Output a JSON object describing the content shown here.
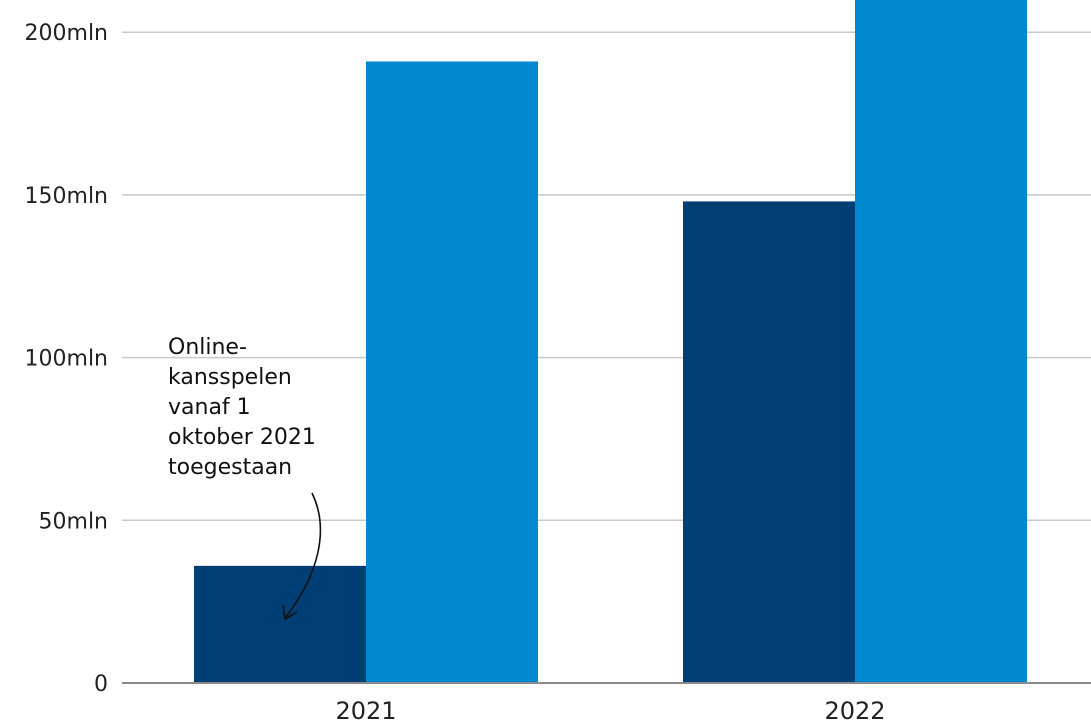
{
  "chart_data": {
    "type": "bar",
    "categories": [
      "2021",
      "2022"
    ],
    "series": [
      {
        "values": [
          36,
          148
        ],
        "color": "#003f75"
      },
      {
        "values": [
          191,
          216
        ],
        "color": "#0088d1"
      }
    ],
    "yticks": [
      0,
      50,
      100,
      150,
      200
    ],
    "ytick_labels": [
      "0",
      "50mln",
      "100mln",
      "150mln",
      "200mln"
    ],
    "ylim": [
      0,
      210
    ],
    "grid": true,
    "annotation": {
      "lines": [
        "Online-",
        "kansspelen",
        "vanaf 1",
        "oktober 2021",
        "toegestaan"
      ],
      "target_category": "2021"
    }
  }
}
